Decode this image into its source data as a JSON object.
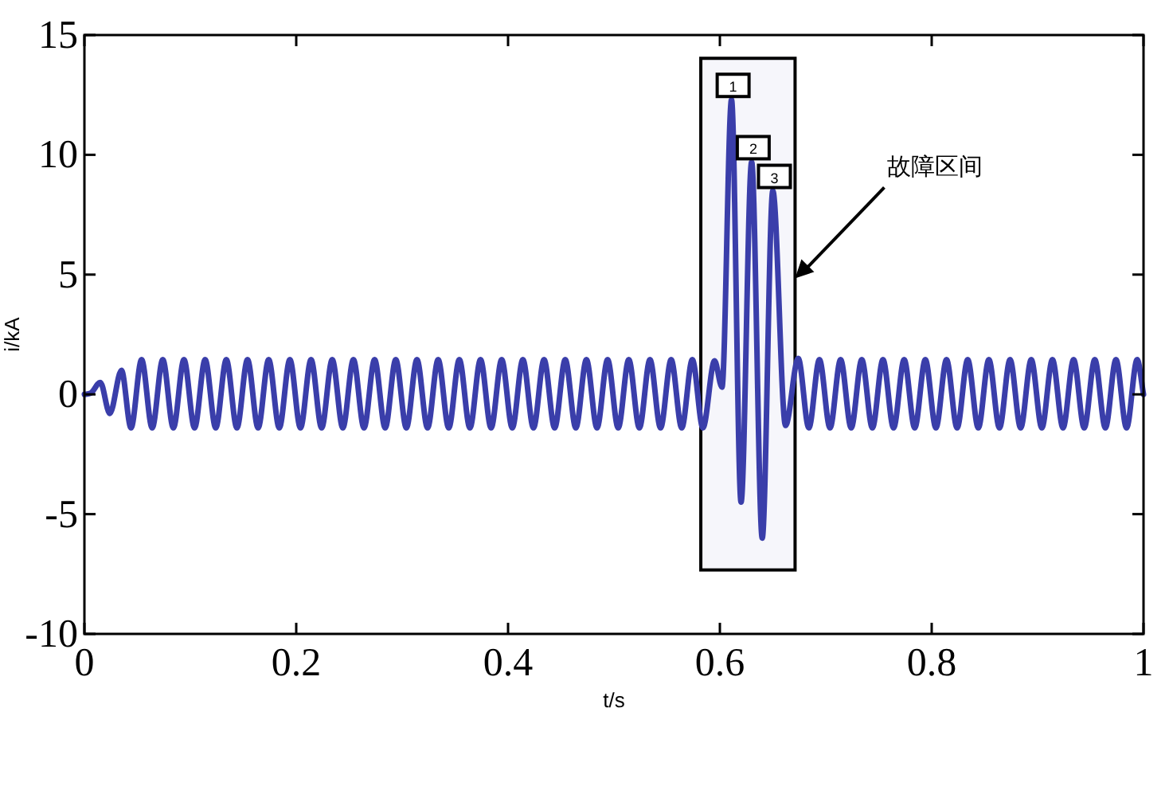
{
  "chart_data": {
    "type": "line",
    "xlabel": "t/s",
    "ylabel": "i/kA",
    "x": [
      0,
      0.006,
      0.015,
      0.024,
      0.035,
      0.044,
      0.054,
      0.064,
      0.074,
      0.084,
      0.094,
      0.104,
      0.114,
      0.124,
      0.134,
      0.144,
      0.154,
      0.164,
      0.174,
      0.184,
      0.194,
      0.204,
      0.214,
      0.224,
      0.234,
      0.244,
      0.254,
      0.264,
      0.274,
      0.284,
      0.294,
      0.304,
      0.314,
      0.324,
      0.334,
      0.344,
      0.354,
      0.364,
      0.374,
      0.384,
      0.394,
      0.404,
      0.414,
      0.424,
      0.434,
      0.444,
      0.454,
      0.464,
      0.474,
      0.484,
      0.494,
      0.504,
      0.514,
      0.524,
      0.534,
      0.544,
      0.554,
      0.564,
      0.574,
      0.584,
      0.595,
      0.602,
      0.611,
      0.62,
      0.63,
      0.64,
      0.65,
      0.662,
      0.674,
      0.684,
      0.694,
      0.704,
      0.714,
      0.724,
      0.734,
      0.744,
      0.754,
      0.764,
      0.774,
      0.784,
      0.794,
      0.804,
      0.814,
      0.824,
      0.834,
      0.844,
      0.854,
      0.864,
      0.874,
      0.884,
      0.894,
      0.904,
      0.914,
      0.924,
      0.934,
      0.944,
      0.954,
      0.964,
      0.974,
      0.984,
      0.994,
      1.0
    ],
    "series": [
      {
        "color": "#3a3eaa",
        "values": [
          0,
          0.05,
          0.5,
          -0.8,
          1.0,
          -1.4,
          1.45,
          -1.4,
          1.45,
          -1.4,
          1.45,
          -1.4,
          1.45,
          -1.4,
          1.45,
          -1.4,
          1.45,
          -1.4,
          1.45,
          -1.4,
          1.45,
          -1.4,
          1.45,
          -1.4,
          1.45,
          -1.4,
          1.45,
          -1.4,
          1.45,
          -1.4,
          1.45,
          -1.4,
          1.45,
          -1.4,
          1.45,
          -1.4,
          1.45,
          -1.4,
          1.45,
          -1.4,
          1.45,
          -1.4,
          1.45,
          -1.4,
          1.45,
          -1.4,
          1.45,
          -1.4,
          1.45,
          -1.4,
          1.45,
          -1.4,
          1.45,
          -1.4,
          1.45,
          -1.4,
          1.45,
          -1.4,
          1.45,
          -1.4,
          1.4,
          0.3,
          12.3,
          -4.5,
          9.7,
          -6.0,
          8.5,
          -1.3,
          1.5,
          -1.4,
          1.45,
          -1.4,
          1.45,
          -1.4,
          1.45,
          -1.4,
          1.45,
          -1.4,
          1.45,
          -1.4,
          1.45,
          -1.4,
          1.45,
          -1.4,
          1.45,
          -1.4,
          1.45,
          -1.4,
          1.45,
          -1.4,
          1.45,
          -1.4,
          1.45,
          -1.4,
          1.45,
          -1.4,
          1.45,
          -1.4,
          1.45,
          -1.4,
          1.45,
          0
        ]
      }
    ],
    "xlim": [
      0,
      1
    ],
    "ylim": [
      -10,
      15
    ],
    "xticks": [
      0,
      0.2,
      0.4,
      0.6,
      0.8,
      1
    ],
    "yticks": [
      -10,
      -5,
      0,
      5,
      10,
      15
    ],
    "annotations": [
      {
        "text": "1",
        "x": 0.611,
        "y": 12.3
      },
      {
        "text": "2",
        "x": 0.63,
        "y": 9.7
      },
      {
        "text": "3",
        "x": 0.65,
        "y": 8.5
      }
    ],
    "bands": [
      {
        "axis": "x",
        "from": 0.582,
        "to": 0.671,
        "label": "故障区间",
        "color": "#eeeef8"
      }
    ],
    "grid": false
  }
}
